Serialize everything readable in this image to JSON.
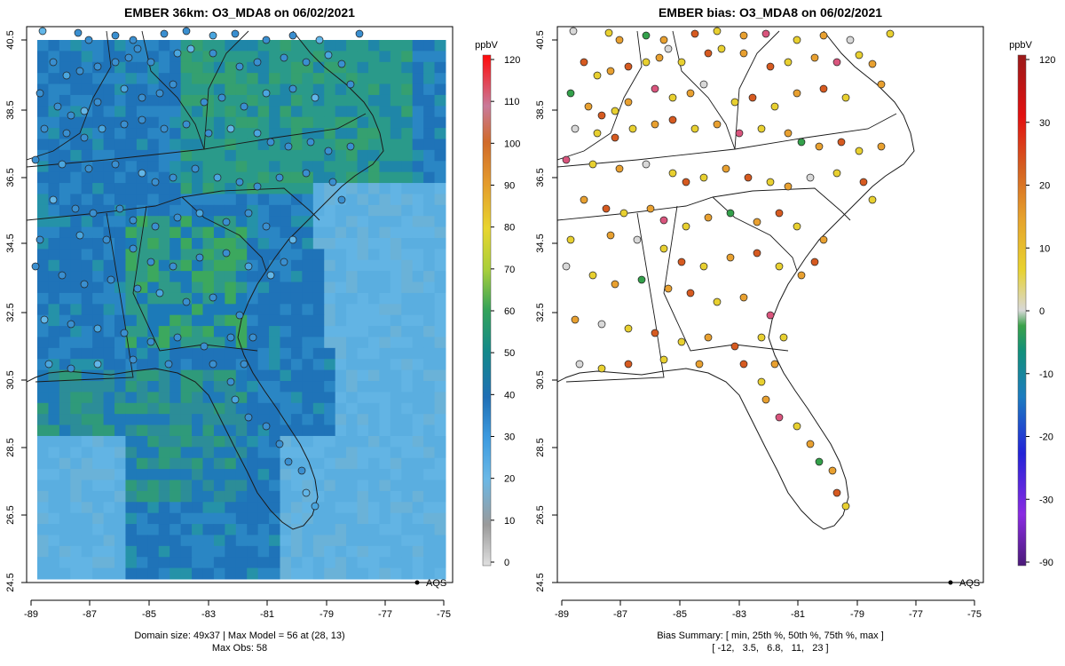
{
  "left_map": {
    "title": "EMBER 36km: O3_MDA8 on 06/02/2021",
    "colorbar_unit": "ppbV",
    "colorbar_ticks": [
      "120",
      "110",
      "100",
      "90",
      "80",
      "70",
      "60",
      "50",
      "40",
      "30",
      "20",
      "10",
      "0"
    ],
    "legend_label": "AQS",
    "footer_line1": "Domain size: 49x37 | Max Model = 56 at (28, 13)",
    "footer_line2": "Max Obs: 58",
    "lat_ticks": [
      "40.5",
      "38.5",
      "36.5",
      "34.5",
      "32.5",
      "30.5",
      "28.5",
      "26.5",
      "24.5"
    ],
    "lon_ticks": [
      "-89",
      "-87",
      "-85",
      "-83",
      "-81",
      "-79",
      "-77",
      "-75"
    ]
  },
  "right_map": {
    "title": "EMBER bias: O3_MDA8 on 06/02/2021",
    "colorbar_unit": "ppbV",
    "colorbar_ticks": [
      "120",
      "30",
      "20",
      "10",
      "0",
      "-10",
      "-20",
      "-30",
      "-90"
    ],
    "legend_label": "AQS",
    "footer_line1": "Bias Summary: [ min, 25th %, 50th %, 75th %, max ]",
    "footer_line2": "[ -12,   3.5,   6.8,   11,   23 ]",
    "lat_ticks": [
      "40.5",
      "38.5",
      "36.5",
      "34.5",
      "32.5",
      "30.5",
      "28.5",
      "26.5",
      "24.5"
    ],
    "lon_ticks": [
      "-89",
      "-87",
      "-85",
      "-83",
      "-81",
      "-79",
      "-77",
      "-75"
    ]
  },
  "colors": {
    "left_scale": [
      "#d8d8d8",
      "#a0a0a0",
      "#5db3e6",
      "#1f7fbf",
      "#138a8a",
      "#32a852",
      "#7cc447",
      "#e6e030",
      "#e8a030",
      "#d65a20",
      "#d9557d",
      "#e65aa0",
      "#ff1c1c"
    ],
    "right_scale": [
      "#5b1f8a",
      "#8a2be2",
      "#2222dd",
      "#1a7fbf",
      "#138a6e",
      "#33a04a",
      "#d8d8d8",
      "#e8d030",
      "#e8a030",
      "#d65a20",
      "#e01010",
      "#a01818"
    ]
  }
}
